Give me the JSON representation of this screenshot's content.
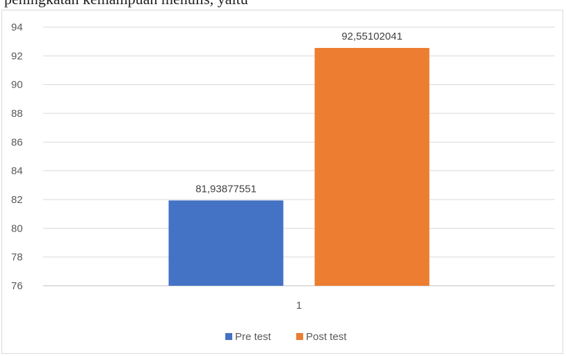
{
  "caption": "peningkatan kemampuan menulis, yaitu",
  "chart_data": {
    "type": "bar",
    "categories": [
      "1"
    ],
    "series": [
      {
        "name": "Pre test",
        "values": [
          81.93877551
        ],
        "label": "81,93877551",
        "color": "#4472C4"
      },
      {
        "name": "Post test",
        "values": [
          92.55102041
        ],
        "label": "92,55102041",
        "color": "#ED7D31"
      }
    ],
    "ylim": [
      76,
      94
    ],
    "yticks": [
      "76",
      "78",
      "80",
      "82",
      "84",
      "86",
      "88",
      "90",
      "92",
      "94"
    ],
    "grid": true,
    "legend": "bottom"
  }
}
